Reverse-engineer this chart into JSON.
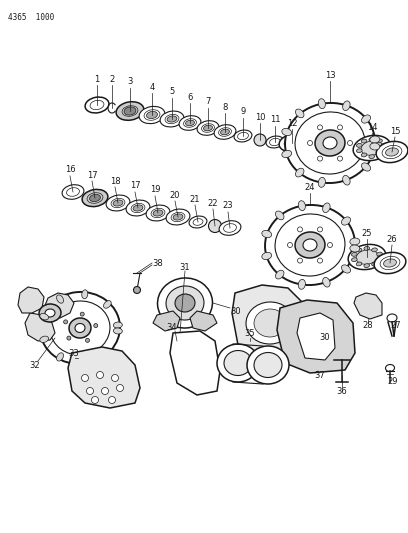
{
  "bg_color": "#ffffff",
  "line_color": "#1a1a1a",
  "label_color": "#1a1a1a",
  "part_number_label": "4365  1000",
  "fig_width": 4.08,
  "fig_height": 5.33,
  "dpi": 100
}
